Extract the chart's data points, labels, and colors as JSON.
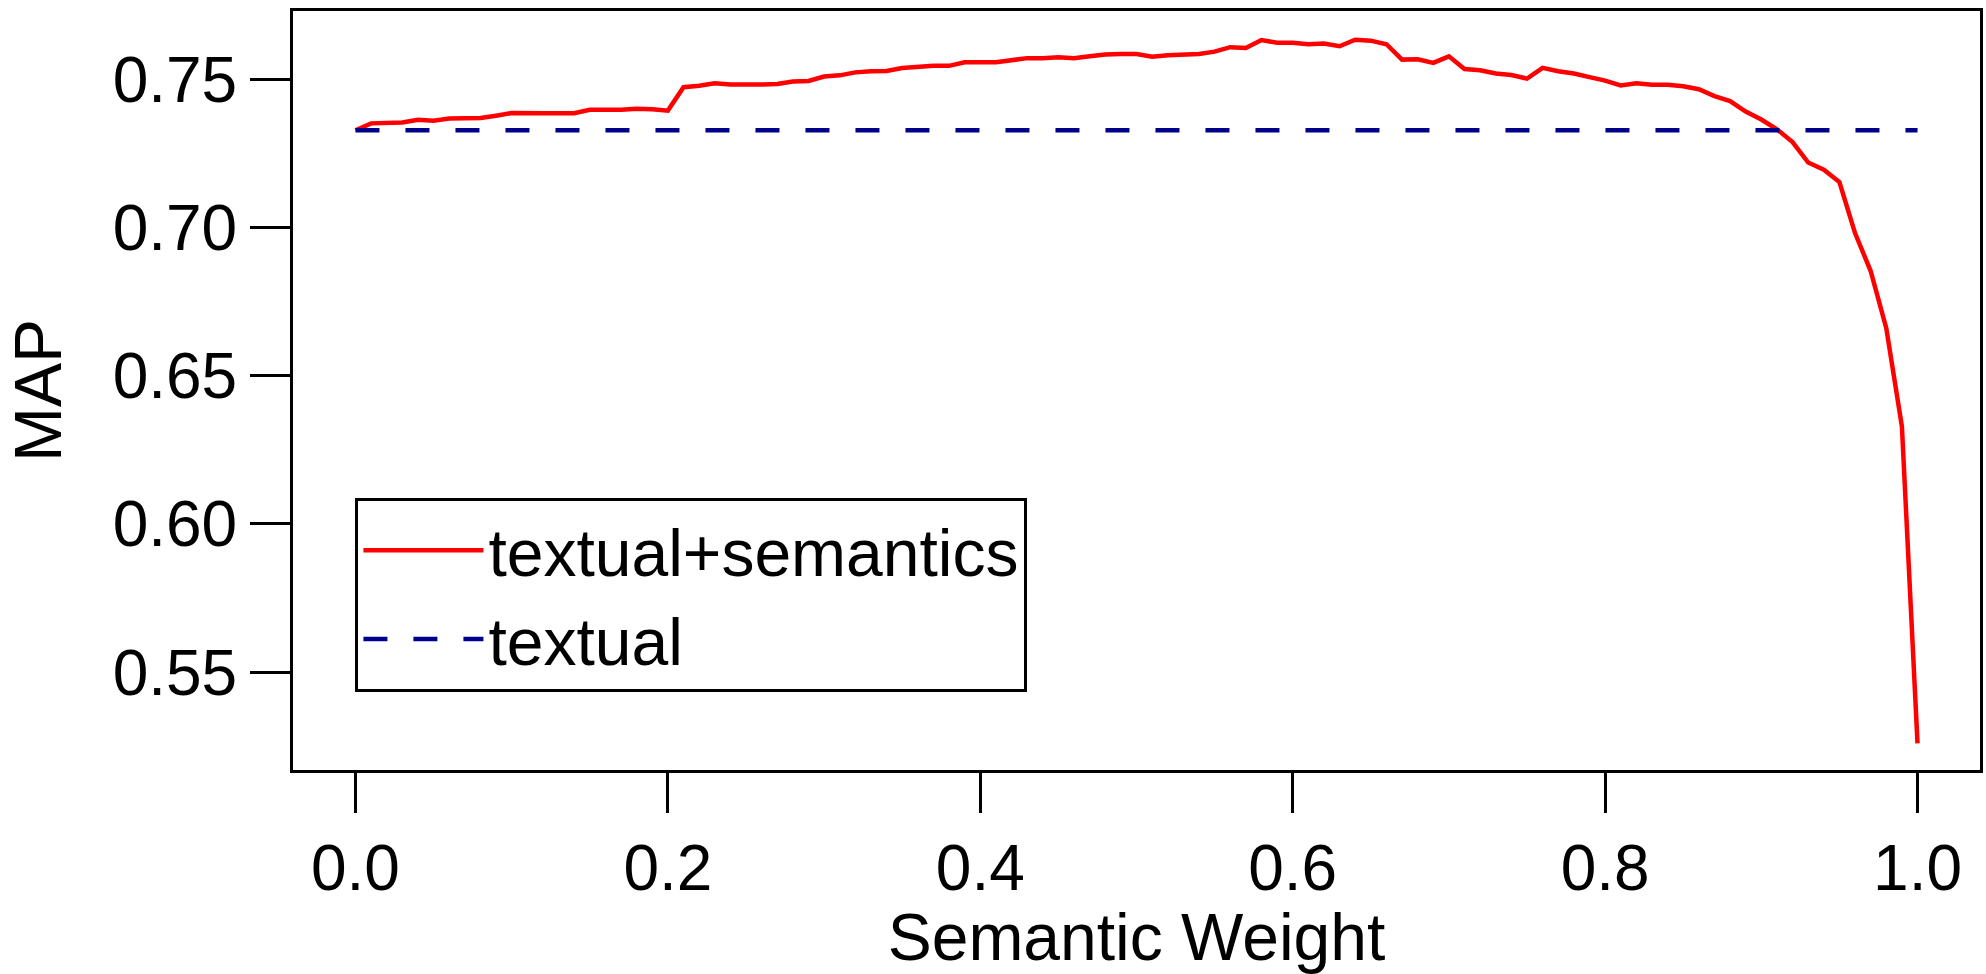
{
  "chart_data": {
    "type": "line",
    "xlabel": "Semantic Weight",
    "ylabel": "MAP",
    "xlim": [
      -0.04,
      1.04
    ],
    "ylim": [
      0.517,
      0.773
    ],
    "xticks": [
      {
        "value": 0,
        "label": "0.0"
      },
      0.2,
      0.4,
      0.6,
      0.8,
      {
        "value": 1,
        "label": "1.0"
      }
    ],
    "yticks": [
      0.55,
      {
        "value": 0.6,
        "label": "0.60"
      },
      0.65,
      {
        "value": 0.7,
        "label": "0.70"
      },
      0.75
    ],
    "legend": "bottom left",
    "series": [
      {
        "name": "textual+semantics",
        "color": "#ff0000",
        "line_style": "solid",
        "x": [
          0.0,
          0.01,
          0.03,
          0.04,
          0.05,
          0.06,
          0.08,
          0.09,
          0.1,
          0.12,
          0.14,
          0.15,
          0.17,
          0.18,
          0.19,
          0.2,
          0.21,
          0.22,
          0.23,
          0.24,
          0.26,
          0.27,
          0.28,
          0.29,
          0.3,
          0.31,
          0.32,
          0.33,
          0.34,
          0.35,
          0.37,
          0.38,
          0.39,
          0.41,
          0.43,
          0.44,
          0.45,
          0.46,
          0.47,
          0.48,
          0.49,
          0.5,
          0.51,
          0.52,
          0.54,
          0.55,
          0.56,
          0.57,
          0.58,
          0.59,
          0.6,
          0.61,
          0.62,
          0.63,
          0.64,
          0.65,
          0.66,
          0.67,
          0.68,
          0.69,
          0.7,
          0.71,
          0.72,
          0.73,
          0.74,
          0.75,
          0.76,
          0.77,
          0.78,
          0.79,
          0.8,
          0.81,
          0.82,
          0.83,
          0.84,
          0.85,
          0.86,
          0.87,
          0.88,
          0.89,
          0.9,
          0.91,
          0.92,
          0.93,
          0.94,
          0.95,
          0.96,
          0.97,
          0.98,
          0.99,
          1.0
        ],
        "values": [
          0.7328,
          0.7351,
          0.7354,
          0.7363,
          0.736,
          0.7367,
          0.7369,
          0.7377,
          0.7386,
          0.7385,
          0.7385,
          0.7397,
          0.7397,
          0.74,
          0.7399,
          0.7394,
          0.7473,
          0.7478,
          0.7486,
          0.7482,
          0.7482,
          0.7484,
          0.7492,
          0.7494,
          0.7509,
          0.7513,
          0.7523,
          0.7527,
          0.7528,
          0.7538,
          0.7545,
          0.7545,
          0.7557,
          0.7557,
          0.7571,
          0.7571,
          0.7574,
          0.7571,
          0.7577,
          0.7583,
          0.7585,
          0.7585,
          0.7576,
          0.7581,
          0.7585,
          0.7593,
          0.7608,
          0.7605,
          0.7632,
          0.7623,
          0.7623,
          0.7618,
          0.762,
          0.7611,
          0.7633,
          0.763,
          0.7618,
          0.7566,
          0.7567,
          0.7555,
          0.7577,
          0.7534,
          0.753,
          0.7519,
          0.7514,
          0.7502,
          0.7538,
          0.7527,
          0.7519,
          0.7507,
          0.7495,
          0.7479,
          0.7486,
          0.7481,
          0.7481,
          0.7476,
          0.7466,
          0.7443,
          0.7426,
          0.7391,
          0.7364,
          0.7331,
          0.7288,
          0.7219,
          0.7195,
          0.7153,
          0.6981,
          0.6853,
          0.666,
          0.6329,
          0.526
        ]
      },
      {
        "name": "textual",
        "color": "#00008b",
        "line_style": "dashed",
        "x": [
          0.0,
          1.0
        ],
        "values": [
          0.7328,
          0.7328
        ]
      }
    ]
  }
}
